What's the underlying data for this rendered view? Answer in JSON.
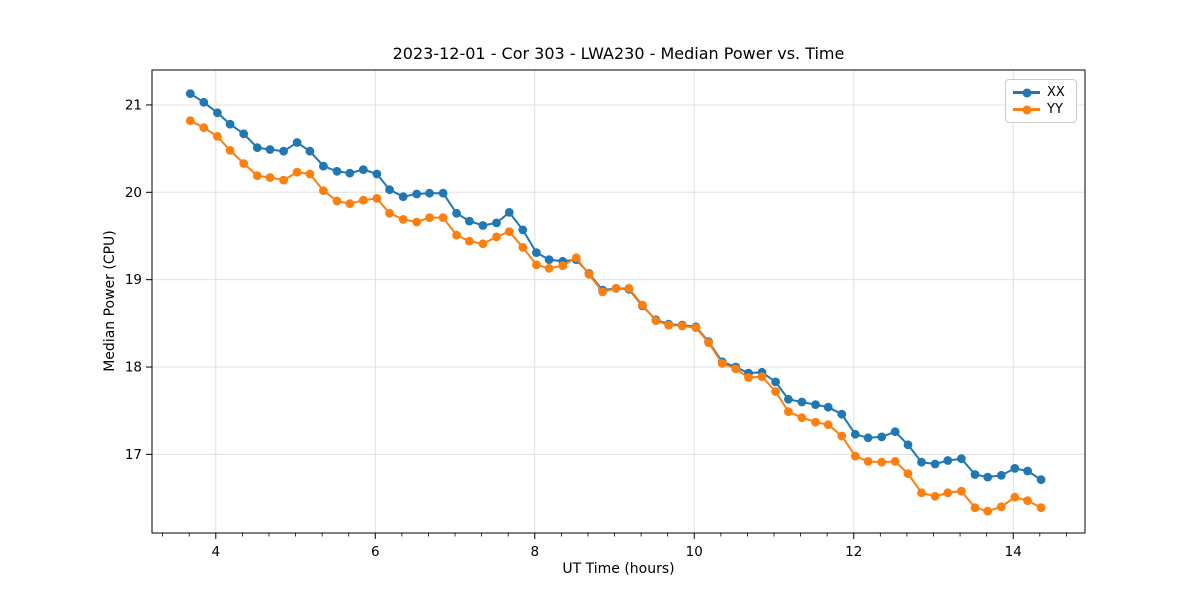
{
  "chart_data": {
    "type": "line",
    "title": "2023-12-01 - Cor 303 - LWA230 - Median Power vs. Time",
    "xlabel": "UT Time (hours)",
    "ylabel": "Median Power (CPU)",
    "xlim": [
      3.2,
      14.9
    ],
    "ylim": [
      16.1,
      21.4
    ],
    "x_ticks": [
      4,
      6,
      8,
      10,
      12,
      14
    ],
    "y_ticks": [
      17,
      18,
      19,
      20,
      21
    ],
    "x_minor_tick_step": 0.3333,
    "grid": true,
    "legend_position": "upper right",
    "x": [
      3.68,
      3.85,
      4.02,
      4.18,
      4.35,
      4.52,
      4.68,
      4.85,
      5.02,
      5.18,
      5.35,
      5.52,
      5.68,
      5.85,
      6.02,
      6.18,
      6.35,
      6.52,
      6.68,
      6.85,
      7.02,
      7.18,
      7.35,
      7.52,
      7.68,
      7.85,
      8.02,
      8.18,
      8.35,
      8.52,
      8.68,
      8.85,
      9.02,
      9.18,
      9.35,
      9.52,
      9.68,
      9.85,
      10.02,
      10.18,
      10.35,
      10.52,
      10.68,
      10.85,
      11.02,
      11.18,
      11.35,
      11.52,
      11.68,
      11.85,
      12.02,
      12.18,
      12.35,
      12.52,
      12.68,
      12.85,
      13.02,
      13.18,
      13.35,
      13.52,
      13.68,
      13.85,
      14.02,
      14.18,
      14.35
    ],
    "series": [
      {
        "name": "XX",
        "color": "#1f77b4",
        "values": [
          21.13,
          21.03,
          20.91,
          20.78,
          20.67,
          20.51,
          20.49,
          20.47,
          20.57,
          20.47,
          20.3,
          20.24,
          20.22,
          20.26,
          20.21,
          20.03,
          19.95,
          19.98,
          19.99,
          19.99,
          19.76,
          19.67,
          19.62,
          19.65,
          19.77,
          19.57,
          19.31,
          19.23,
          19.21,
          19.23,
          19.07,
          18.88,
          18.9,
          18.89,
          18.7,
          18.54,
          18.49,
          18.48,
          18.46,
          18.29,
          18.06,
          18.0,
          17.93,
          17.94,
          17.83,
          17.63,
          17.6,
          17.57,
          17.54,
          17.46,
          17.23,
          17.19,
          17.2,
          17.26,
          17.11,
          16.91,
          16.89,
          16.93,
          16.95,
          16.77,
          16.74,
          16.76,
          16.84,
          16.81,
          16.71
        ]
      },
      {
        "name": "YY",
        "color": "#ff7f0e",
        "values": [
          20.82,
          20.74,
          20.64,
          20.48,
          20.33,
          20.19,
          20.17,
          20.14,
          20.23,
          20.21,
          20.02,
          19.9,
          19.87,
          19.91,
          19.93,
          19.76,
          19.69,
          19.66,
          19.71,
          19.71,
          19.51,
          19.44,
          19.41,
          19.49,
          19.55,
          19.37,
          19.17,
          19.13,
          19.16,
          19.25,
          19.06,
          18.86,
          18.9,
          18.9,
          18.71,
          18.53,
          18.48,
          18.47,
          18.45,
          18.28,
          18.04,
          17.98,
          17.88,
          17.89,
          17.72,
          17.49,
          17.42,
          17.37,
          17.34,
          17.21,
          16.98,
          16.92,
          16.91,
          16.92,
          16.78,
          16.56,
          16.52,
          16.56,
          16.58,
          16.39,
          16.35,
          16.4,
          16.51,
          16.47,
          16.39
        ]
      }
    ],
    "style": {
      "grid_color": "#e0e0e0",
      "spine_color": "#000000",
      "marker_radius": 4.4,
      "line_width": 2
    }
  }
}
